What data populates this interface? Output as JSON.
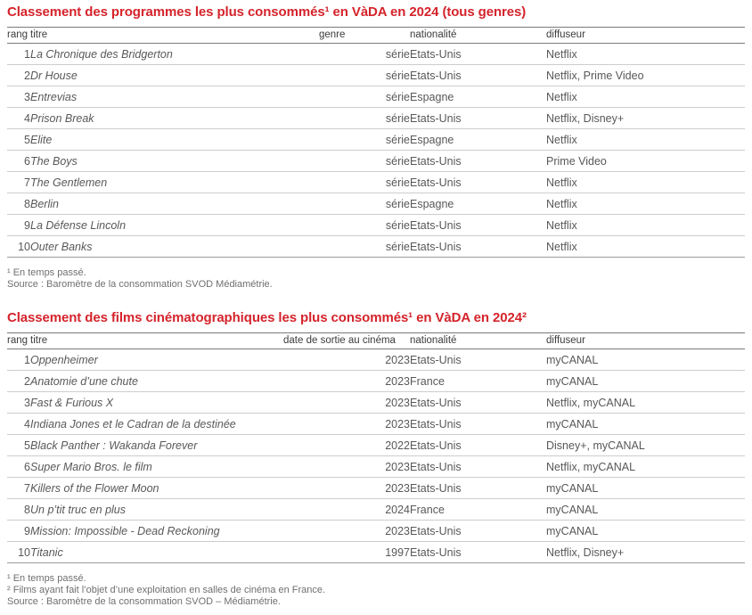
{
  "t1": {
    "title": "Classement des programmes les plus consommés¹ en VàDA en 2024 (tous genres)",
    "headers": {
      "rang": "rang",
      "titre": "titre",
      "genre": "genre",
      "nationalite": "nationalité",
      "diffuseur": "diffuseur"
    },
    "rows": [
      {
        "rang": "1",
        "titre": "La Chronique des Bridgerton",
        "genre": "série",
        "nationalite": "Etats-Unis",
        "diffuseur": "Netflix"
      },
      {
        "rang": "2",
        "titre": "Dr House",
        "genre": "série",
        "nationalite": "Etats-Unis",
        "diffuseur": "Netflix, Prime Video"
      },
      {
        "rang": "3",
        "titre": "Entrevias",
        "genre": "série",
        "nationalite": "Espagne",
        "diffuseur": "Netflix"
      },
      {
        "rang": "4",
        "titre": "Prison Break",
        "genre": "série",
        "nationalite": "Etats-Unis",
        "diffuseur": "Netflix, Disney+"
      },
      {
        "rang": "5",
        "titre": "Elite",
        "genre": "série",
        "nationalite": "Espagne",
        "diffuseur": "Netflix"
      },
      {
        "rang": "6",
        "titre": "The Boys",
        "genre": "série",
        "nationalite": "Etats-Unis",
        "diffuseur": "Prime Video"
      },
      {
        "rang": "7",
        "titre": "The Gentlemen",
        "genre": "série",
        "nationalite": "Etats-Unis",
        "diffuseur": "Netflix"
      },
      {
        "rang": "8",
        "titre": "Berlin",
        "genre": "série",
        "nationalite": "Espagne",
        "diffuseur": "Netflix"
      },
      {
        "rang": "9",
        "titre": "La Défense Lincoln",
        "genre": "série",
        "nationalite": "Etats-Unis",
        "diffuseur": "Netflix"
      },
      {
        "rang": "10",
        "titre": "Outer Banks",
        "genre": "série",
        "nationalite": "Etats-Unis",
        "diffuseur": "Netflix"
      }
    ],
    "footnotes": {
      "note1": "¹ En temps passé.",
      "source": "Source : Baromètre de la consommation SVOD Médiamétrie."
    }
  },
  "t2": {
    "title": "Classement des films cinématographiques les plus consommés¹ en VàDA en 2024²",
    "headers": {
      "rang": "rang",
      "titre": "titre",
      "date": "date de sortie au cinéma",
      "nationalite": "nationalité",
      "diffuseur": "diffuseur"
    },
    "rows": [
      {
        "rang": "1",
        "titre": "Oppenheimer",
        "date": "2023",
        "nationalite": "Etats-Unis",
        "diffuseur": "myCANAL"
      },
      {
        "rang": "2",
        "titre": "Anatomie d’une chute",
        "date": "2023",
        "nationalite": "France",
        "diffuseur": "myCANAL"
      },
      {
        "rang": "3",
        "titre": "Fast & Furious X",
        "date": "2023",
        "nationalite": "Etats-Unis",
        "diffuseur": "Netflix, myCANAL"
      },
      {
        "rang": "4",
        "titre": "Indiana Jones et le Cadran de la destinée",
        "date": "2023",
        "nationalite": "Etats-Unis",
        "diffuseur": "myCANAL"
      },
      {
        "rang": "5",
        "titre": "Black Panther : Wakanda Forever",
        "date": "2022",
        "nationalite": "Etats-Unis",
        "diffuseur": "Disney+, myCANAL"
      },
      {
        "rang": "6",
        "titre": "Super Mario Bros. le film",
        "date": "2023",
        "nationalite": "Etats-Unis",
        "diffuseur": "Netflix, myCANAL"
      },
      {
        "rang": "7",
        "titre": "Killers of the Flower Moon",
        "date": "2023",
        "nationalite": "Etats-Unis",
        "diffuseur": "myCANAL"
      },
      {
        "rang": "8",
        "titre": "Un p’tit truc en plus",
        "date": "2024",
        "nationalite": "France",
        "diffuseur": "myCANAL"
      },
      {
        "rang": "9",
        "titre": "Mission: Impossible - Dead Reckoning",
        "date": "2023",
        "nationalite": "Etats-Unis",
        "diffuseur": "myCANAL"
      },
      {
        "rang": "10",
        "titre": "Titanic",
        "date": "1997",
        "nationalite": "Etats-Unis",
        "diffuseur": "Netflix, Disney+"
      }
    ],
    "footnotes": {
      "note1": "¹ En temps passé.",
      "note2": "² Films ayant fait l’objet d’une exploitation en salles de cinéma en France.",
      "source": "Source : Baromètre de la consommation SVOD – Médiamétrie."
    }
  }
}
